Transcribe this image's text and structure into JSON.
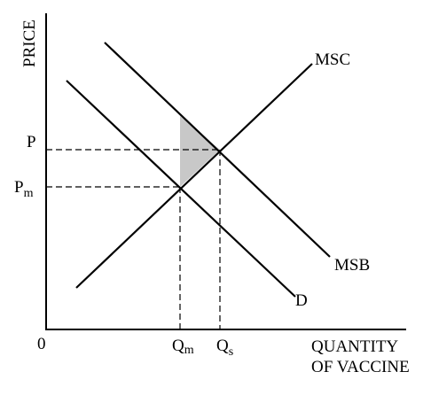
{
  "axes": {
    "y_label": "PRICE",
    "origin_label": "0",
    "x_label_line1": "QUANTITY",
    "x_label_line2": "OF VACCINE"
  },
  "prices": {
    "p_label": "P",
    "pm_label_main": "P",
    "pm_label_sub": "m"
  },
  "quantities": {
    "qm_label_main": "Q",
    "qm_label_sub": "m",
    "qs_label_main": "Q",
    "qs_label_sub": "s"
  },
  "curves": {
    "msc_label": "MSC",
    "msb_label": "MSB",
    "d_label": "D"
  },
  "colors": {
    "line": "#000000",
    "shaded_area": "#c8c8c8"
  }
}
